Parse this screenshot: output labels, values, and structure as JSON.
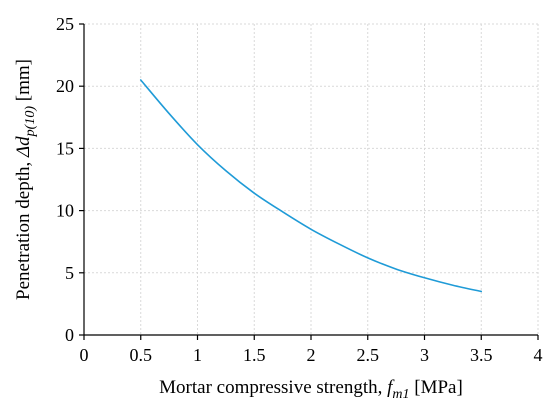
{
  "chart_data": {
    "type": "line",
    "title": "",
    "xlabel": {
      "prefix": "Mortar compressive strength, ",
      "symbol": "f",
      "subscript": "m1",
      "unit": " [MPa]"
    },
    "ylabel": {
      "prefix": "Penetration depth, ",
      "symbol": "Δd",
      "subscript": "p(10)",
      "unit": " [mm]"
    },
    "xlim": [
      0,
      4
    ],
    "ylim": [
      0,
      25
    ],
    "xticks": [
      0,
      0.5,
      1,
      1.5,
      2,
      2.5,
      3,
      3.5,
      4
    ],
    "xtick_labels": [
      "0",
      "0.5",
      "1",
      "1.5",
      "2",
      "2.5",
      "3",
      "3.5",
      "4"
    ],
    "yticks": [
      0,
      5,
      10,
      15,
      20,
      25
    ],
    "ytick_labels": [
      "0",
      "5",
      "10",
      "15",
      "20",
      "25"
    ],
    "grid": true,
    "legend": "none",
    "series": [
      {
        "color": "#1f9bd7",
        "x": [
          0.5,
          0.75,
          1.0,
          1.25,
          1.5,
          1.75,
          2.0,
          2.25,
          2.5,
          2.75,
          3.0,
          3.25,
          3.5
        ],
        "y": [
          20.5,
          17.8,
          15.3,
          13.2,
          11.4,
          9.9,
          8.5,
          7.3,
          6.2,
          5.3,
          4.6,
          4.0,
          3.5
        ]
      }
    ]
  }
}
